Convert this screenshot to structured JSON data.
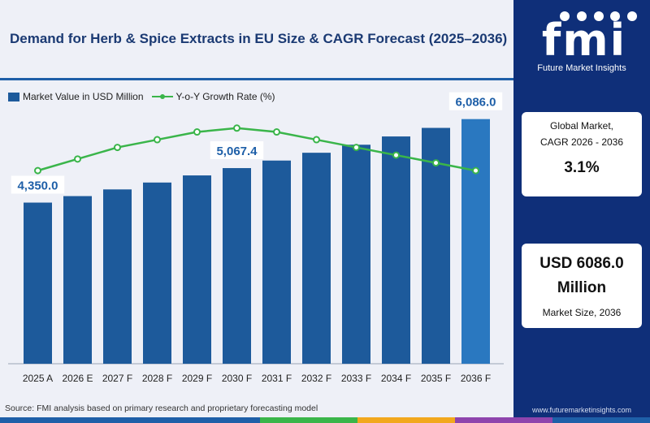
{
  "title": "Demand for Herb & Spice Extracts in EU Size & CAGR Forecast (2025–2036)",
  "legend": {
    "bar_label": "Market Value in USD Million",
    "line_label": "Y-o-Y Growth Rate (%)"
  },
  "source": "Source: FMI analysis based on primary research and proprietary forecasting model",
  "brand": {
    "logo_text": "fmi",
    "logo_subtitle": "Future Market Insights",
    "website": "www.futuremarketinsights.com"
  },
  "cagr_card": {
    "label_line1": "Global Market,",
    "label_line2": "CAGR 2026 - 2036",
    "value": "3.1%"
  },
  "size_card": {
    "value_line1": "USD 6086.0",
    "value_line2": "Million",
    "label": "Market Size, 2036"
  },
  "colors": {
    "bar": "#1d5a9b",
    "bar_highlight": "#2a78c0",
    "line": "#3ab54a",
    "title": "#1b3a73",
    "panel": "#0f2f79"
  },
  "chart_data": {
    "type": "bar",
    "categories": [
      "2025 A",
      "2026 E",
      "2027 F",
      "2028 F",
      "2029 F",
      "2030 F",
      "2031 F",
      "2032 F",
      "2033 F",
      "2034 F",
      "2035 F",
      "2036 F"
    ],
    "series": [
      {
        "name": "Market Value in USD Million",
        "type": "bar",
        "values": [
          4350.0,
          4485,
          4624,
          4767,
          4915,
          5067.4,
          5224,
          5386,
          5553,
          5725,
          5903,
          6086.0
        ]
      },
      {
        "name": "Y-o-Y Growth Rate (%)",
        "type": "line",
        "values": [
          3.1,
          3.13,
          3.16,
          3.18,
          3.2,
          3.21,
          3.2,
          3.18,
          3.16,
          3.14,
          3.12,
          3.1
        ]
      }
    ],
    "data_labels": [
      {
        "index": 0,
        "text": "4,350.0"
      },
      {
        "index": 5,
        "text": "5,067.4"
      },
      {
        "index": 11,
        "text": "6,086.0"
      }
    ],
    "highlight_index": 11,
    "ylim": [
      1000,
      6300
    ],
    "y2lim": [
      2.6,
      3.26
    ],
    "grid": false,
    "legend_position": "top-left"
  }
}
